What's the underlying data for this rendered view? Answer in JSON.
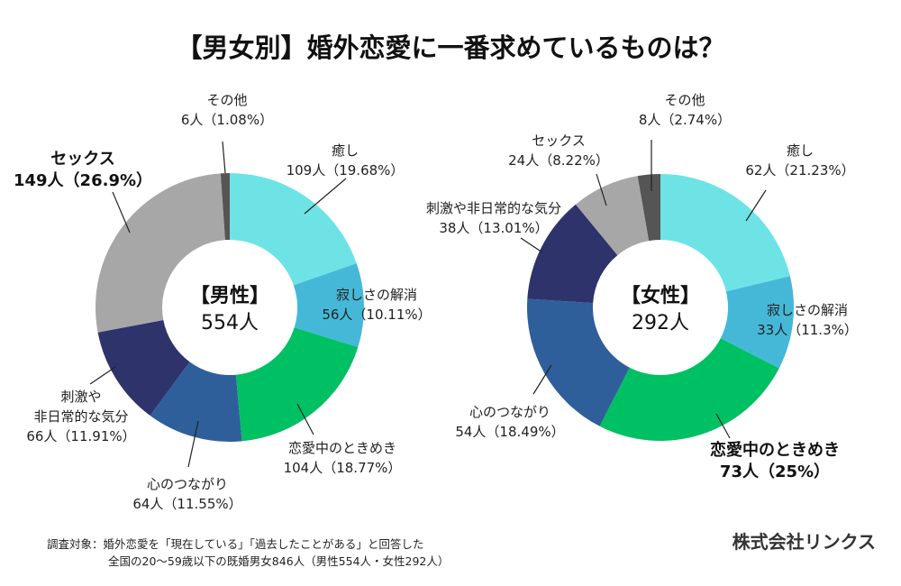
{
  "title": "【男女別】婚外恋愛に一番求めているものは？",
  "colors": {
    "癒し": "#6ee3e6",
    "寂しさの解消": "#45b8d8",
    "恋愛中のときめき": "#00c064",
    "心のつながり": "#2f5f9a",
    "刺激や非日常的な気分": "#2e336c",
    "セックス": "#a7a7a7",
    "その他": "#555555"
  },
  "chart_data": [
    {
      "type": "pie",
      "variant": "donut",
      "name": "male",
      "center_title": "【男性】",
      "center_total": "554人",
      "total": 554,
      "start": "top",
      "direction": "clockwise",
      "slices": [
        {
          "label": "癒し",
          "count": 109,
          "percent": 19.68,
          "value_text": "109人（19.68%）",
          "label_lines": [
            "癒し"
          ],
          "bold": false
        },
        {
          "label": "寂しさの解消",
          "count": 56,
          "percent": 10.11,
          "value_text": "56人（10.11%）",
          "label_lines": [
            "寂しさの解消"
          ],
          "bold": false
        },
        {
          "label": "恋愛中のときめき",
          "count": 104,
          "percent": 18.77,
          "value_text": "104人（18.77%）",
          "label_lines": [
            "恋愛中のときめき"
          ],
          "bold": false
        },
        {
          "label": "心のつながり",
          "count": 64,
          "percent": 11.55,
          "value_text": "64人（11.55%）",
          "label_lines": [
            "心のつながり"
          ],
          "bold": false
        },
        {
          "label": "刺激や非日常的な気分",
          "count": 66,
          "percent": 11.91,
          "value_text": "66人（11.91%）",
          "label_lines": [
            "刺激や",
            "非日常的な気分"
          ],
          "bold": false
        },
        {
          "label": "セックス",
          "count": 149,
          "percent": 26.9,
          "value_text": "149人（26.9%）",
          "label_lines": [
            "セックス"
          ],
          "bold": true
        },
        {
          "label": "その他",
          "count": 6,
          "percent": 1.08,
          "value_text": "6人（1.08%）",
          "label_lines": [
            "その他"
          ],
          "bold": false
        }
      ]
    },
    {
      "type": "pie",
      "variant": "donut",
      "name": "female",
      "center_title": "【女性】",
      "center_total": "292人",
      "total": 292,
      "start": "top",
      "direction": "clockwise",
      "slices": [
        {
          "label": "癒し",
          "count": 62,
          "percent": 21.23,
          "value_text": "62人（21.23%）",
          "label_lines": [
            "癒し"
          ],
          "bold": false
        },
        {
          "label": "寂しさの解消",
          "count": 33,
          "percent": 11.3,
          "value_text": "33人（11.3%）",
          "label_lines": [
            "寂しさの解消"
          ],
          "bold": false
        },
        {
          "label": "恋愛中のときめき",
          "count": 73,
          "percent": 25,
          "value_text": "73人（25%）",
          "label_lines": [
            "恋愛中のときめき"
          ],
          "bold": true
        },
        {
          "label": "心のつながり",
          "count": 54,
          "percent": 18.49,
          "value_text": "54人（18.49%）",
          "label_lines": [
            "心のつながり"
          ],
          "bold": false
        },
        {
          "label": "刺激や非日常的な気分",
          "count": 38,
          "percent": 13.01,
          "value_text": "38人（13.01%）",
          "label_lines": [
            "刺激や非日常的な気分"
          ],
          "bold": false
        },
        {
          "label": "セックス",
          "count": 24,
          "percent": 8.22,
          "value_text": "24人（8.22%）",
          "label_lines": [
            "セックス"
          ],
          "bold": false
        },
        {
          "label": "その他",
          "count": 8,
          "percent": 2.74,
          "value_text": "8人（2.74%）",
          "label_lines": [
            "その他"
          ],
          "bold": false
        }
      ]
    }
  ],
  "footnote": {
    "line1": "調査対象：婚外恋愛を「現在している」「過去したことがある」と回答した",
    "line2": "全国の20〜59歳以下の既婚男女846人（男性554人・女性292人）"
  },
  "company": "株式会社リンクス"
}
